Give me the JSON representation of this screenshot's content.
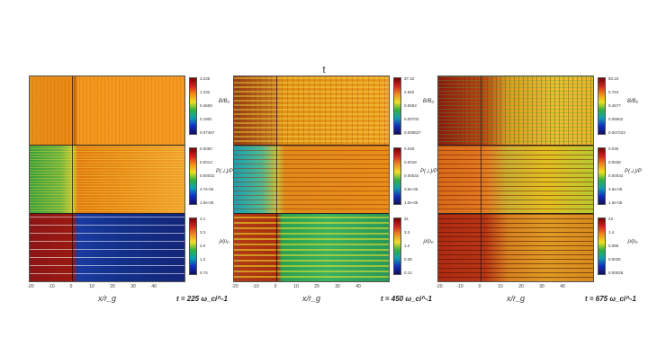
{
  "figure": {
    "title": "t",
    "xlabel": "x/r_g",
    "xticks": [
      "-20",
      "-10",
      "0",
      "10",
      "20",
      "30",
      "40"
    ]
  },
  "panels": [
    {
      "time": "t = 225 ω_ci^-1",
      "colorbars": [
        {
          "var": "B/B₀",
          "ticks": [
            "3.235",
            "1.232",
            "0.4609",
            "0.1901",
            "0.07467"
          ]
        },
        {
          "var": "P(⊥)/P",
          "ticks": [
            "0.0050",
            "0.0013",
            "0.00032",
            "4.7e-05",
            "1.0e-05"
          ]
        },
        {
          "var": "ρ/ρ₀",
          "ticks": [
            "3.1",
            "3.3",
            "2.0",
            "1.2",
            "0.74"
          ]
        }
      ]
    },
    {
      "time": "t = 450 ω_ci^-1",
      "colorbars": [
        {
          "var": "B/B₀",
          "ticks": [
            "37.42",
            "2.582",
            "0.0653",
            "0.00703",
            "0.000627"
          ]
        },
        {
          "var": "P(⊥)/P",
          "ticks": [
            "0.030",
            "0.0018",
            "0.00032",
            "3.6e-05",
            "1.0e-05"
          ]
        },
        {
          "var": "ρ/ρ₀",
          "ticks": [
            "31",
            "3.3",
            "1.2",
            "0.38",
            "0.12"
          ]
        }
      ]
    },
    {
      "time": "t = 675 ω_ci^-1",
      "colorbars": [
        {
          "var": "B/B₀",
          "ticks": [
            "50.23",
            "0.784",
            "0.4677",
            "0.05902",
            "0.007223"
          ]
        },
        {
          "var": "P(⊥)/P",
          "ticks": [
            "0.030",
            "0.0038",
            "0.00032",
            "3.6e-05",
            "1.0e-05"
          ]
        },
        {
          "var": "ρ/ρ₀",
          "ticks": [
            "23",
            "1.4",
            "0.085",
            "0.0035",
            "0.00026"
          ]
        }
      ]
    }
  ]
}
